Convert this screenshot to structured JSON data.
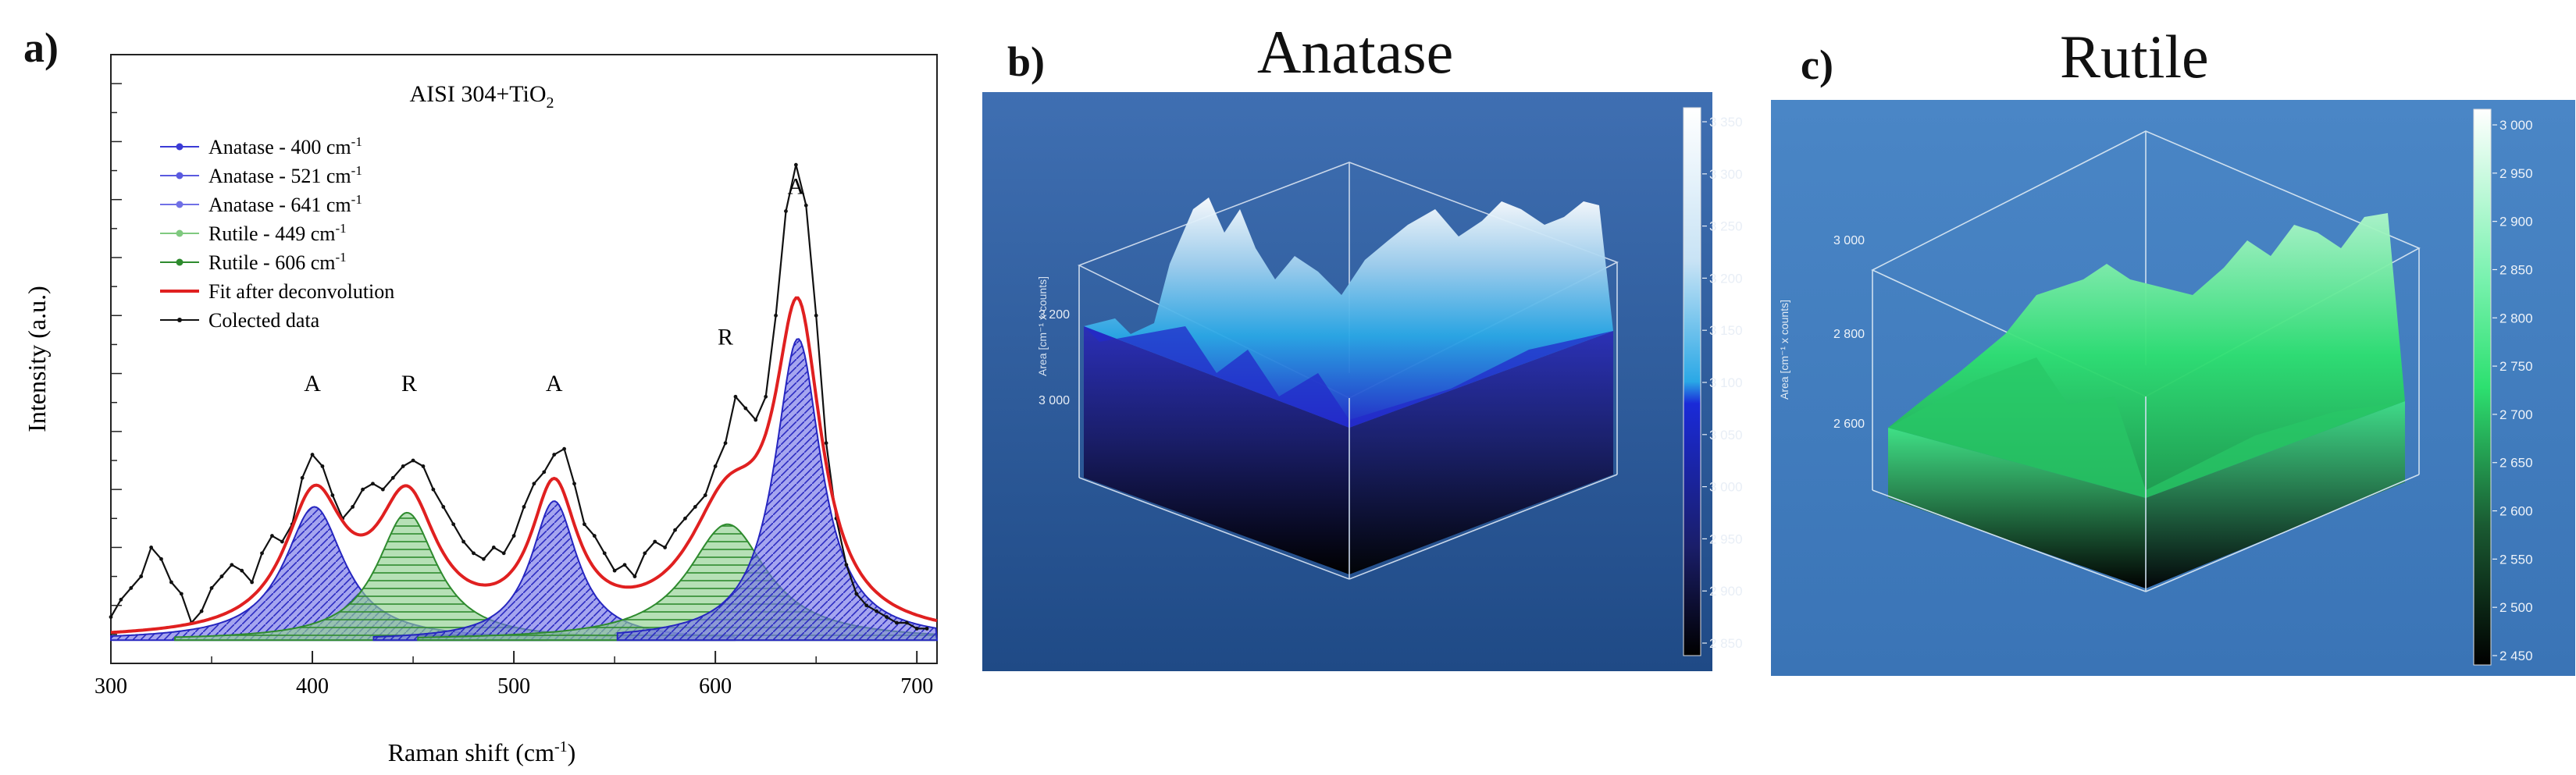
{
  "panels": {
    "a": {
      "letter": "a)"
    },
    "b": {
      "letter": "b)",
      "title": "Anatase"
    },
    "c": {
      "letter": "c)",
      "title": "Rutile"
    }
  },
  "chart_data": [
    {
      "type": "line",
      "id": "raman-deconvolution",
      "title": "AISI 304+TiO",
      "title_sub": "2",
      "xlabel": "Raman shift (cm",
      "xlabel_sup": "-1",
      "xlabel_end": ")",
      "ylabel": "Intensity (a.u.)",
      "xlim": [
        300,
        710
      ],
      "ylim": [
        0,
        105
      ],
      "x_ticks": [
        300,
        400,
        500,
        600,
        700
      ],
      "peak_labels": [
        {
          "text": "A",
          "x": 400,
          "y": 47
        },
        {
          "text": "R",
          "x": 448,
          "y": 47
        },
        {
          "text": "A",
          "x": 520,
          "y": 47
        },
        {
          "text": "R",
          "x": 605,
          "y": 55
        },
        {
          "text": "A",
          "x": 640,
          "y": 81
        }
      ],
      "legend": [
        {
          "label": "Anatase - 400 cm",
          "sup": "-1",
          "color": "#3b3bd6",
          "marker": "square"
        },
        {
          "label": "Anatase - 521 cm",
          "sup": "-1",
          "color": "#5a5ae0",
          "marker": "triangle"
        },
        {
          "label": "Anatase - 641 cm",
          "sup": "-1",
          "color": "#7070e6",
          "marker": "triangle-down"
        },
        {
          "label": "Rutile - 449 cm",
          "sup": "-1",
          "color": "#7fc97f",
          "marker": "diamond"
        },
        {
          "label": "Rutile - 606 cm",
          "sup": "-1",
          "color": "#2e8b2e",
          "marker": "circle"
        },
        {
          "label": "Fit after deconvolution",
          "color": "#e02020",
          "marker": "none"
        },
        {
          "label": "Colected data",
          "color": "#111111",
          "marker": "dot"
        }
      ],
      "baseline": 4,
      "peaks": [
        {
          "name": "Anatase - 400",
          "phase": "anatase",
          "center": 401,
          "height": 23,
          "fwhm": 36
        },
        {
          "name": "Rutile - 449",
          "phase": "rutile",
          "center": 447,
          "height": 22,
          "fwhm": 36
        },
        {
          "name": "Anatase - 521",
          "phase": "anatase",
          "center": 520,
          "height": 24,
          "fwhm": 28
        },
        {
          "name": "Rutile - 606",
          "phase": "rutile",
          "center": 606,
          "height": 20,
          "fwhm": 48
        },
        {
          "name": "Anatase - 641",
          "phase": "anatase",
          "center": 641,
          "height": 52,
          "fwhm": 28
        }
      ],
      "collected": {
        "x": [
          300,
          305,
          310,
          315,
          320,
          325,
          330,
          335,
          340,
          345,
          350,
          355,
          360,
          365,
          370,
          375,
          380,
          385,
          390,
          395,
          400,
          405,
          410,
          415,
          420,
          425,
          430,
          435,
          440,
          445,
          450,
          455,
          460,
          465,
          470,
          475,
          480,
          485,
          490,
          495,
          500,
          505,
          510,
          515,
          520,
          525,
          530,
          535,
          540,
          545,
          550,
          555,
          560,
          565,
          570,
          575,
          580,
          585,
          590,
          595,
          600,
          605,
          610,
          615,
          620,
          625,
          630,
          635,
          640,
          645,
          650,
          655,
          660,
          665,
          670,
          675,
          680,
          685,
          690,
          695,
          700,
          705
        ],
        "y": [
          8,
          11,
          13,
          15,
          20,
          18,
          14,
          12,
          7,
          9,
          13,
          15,
          17,
          16,
          14,
          19,
          22,
          21,
          24,
          32,
          36,
          34,
          29,
          25,
          27,
          30,
          31,
          30,
          32,
          34,
          35,
          34,
          30,
          27,
          24,
          21,
          19,
          18,
          20,
          19,
          22,
          27,
          31,
          33,
          36,
          37,
          31,
          24,
          22,
          19,
          16,
          17,
          15,
          19,
          21,
          20,
          23,
          25,
          27,
          29,
          34,
          38,
          46,
          44,
          42,
          46,
          60,
          78,
          86,
          79,
          60,
          38,
          25,
          17,
          12,
          10,
          9,
          8,
          7,
          7,
          6,
          6
        ]
      }
    },
    {
      "type": "surface-3d",
      "id": "anatase-map",
      "title": "Anatase",
      "zlabel": "Area [cm⁻¹ x counts]",
      "z_ticks": [
        "3 200",
        "3 000"
      ],
      "colorbar_ticks": [
        "3 350",
        "3 300",
        "3 250",
        "3 200",
        "3 150",
        "3 100",
        "3 050",
        "3 000",
        "2 950",
        "2 900",
        "2 850"
      ],
      "colorscale": [
        "#ffffff",
        "#c8e3f5",
        "#2aa8e6",
        "#1a2ad8",
        "#000000"
      ]
    },
    {
      "type": "surface-3d",
      "id": "rutile-map",
      "title": "Rutile",
      "zlabel": "Area [cm⁻¹ x counts]",
      "z_ticks": [
        "3 000",
        "2 800",
        "2 600"
      ],
      "colorbar_ticks": [
        "3 000",
        "2 950",
        "2 900",
        "2 850",
        "2 800",
        "2 750",
        "2 700",
        "2 650",
        "2 600",
        "2 550",
        "2 500",
        "2 450"
      ],
      "colorscale": [
        "#ffffff",
        "#7bf2b0",
        "#2de070",
        "#1a5a32",
        "#000000"
      ]
    }
  ]
}
